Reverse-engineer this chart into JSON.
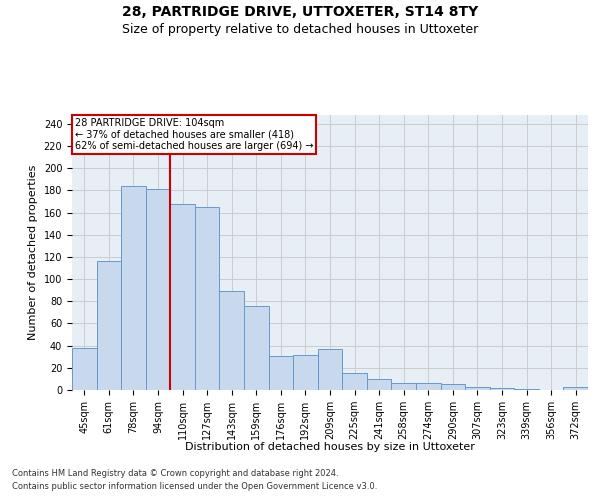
{
  "title": "28, PARTRIDGE DRIVE, UTTOXETER, ST14 8TY",
  "subtitle": "Size of property relative to detached houses in Uttoxeter",
  "xlabel": "Distribution of detached houses by size in Uttoxeter",
  "ylabel": "Number of detached properties",
  "footnote1": "Contains HM Land Registry data © Crown copyright and database right 2024.",
  "footnote2": "Contains public sector information licensed under the Open Government Licence v3.0.",
  "categories": [
    "45sqm",
    "61sqm",
    "78sqm",
    "94sqm",
    "110sqm",
    "127sqm",
    "143sqm",
    "159sqm",
    "176sqm",
    "192sqm",
    "209sqm",
    "225sqm",
    "241sqm",
    "258sqm",
    "274sqm",
    "290sqm",
    "307sqm",
    "323sqm",
    "339sqm",
    "356sqm",
    "372sqm"
  ],
  "values": [
    38,
    116,
    184,
    181,
    168,
    165,
    89,
    76,
    31,
    32,
    37,
    15,
    10,
    6,
    6,
    5,
    3,
    2,
    1,
    0,
    3
  ],
  "bar_color": "#c9d9ed",
  "bar_edge_color": "#6699cc",
  "redline_x": 3.5,
  "redline_label": "28 PARTRIDGE DRIVE: 104sqm",
  "annotation_line1": "← 37% of detached houses are smaller (418)",
  "annotation_line2": "62% of semi-detached houses are larger (694) →",
  "annotation_box_color": "#ffffff",
  "annotation_box_edge": "#cc0000",
  "redline_color": "#cc0000",
  "ylim": [
    0,
    248
  ],
  "yticks": [
    0,
    20,
    40,
    60,
    80,
    100,
    120,
    140,
    160,
    180,
    200,
    220,
    240
  ],
  "grid_color": "#cccccc",
  "bg_color": "#e8eef5",
  "title_fontsize": 10,
  "subtitle_fontsize": 9,
  "axis_label_fontsize": 8,
  "tick_fontsize": 7,
  "footnote_fontsize": 6,
  "annotation_fontsize": 7
}
